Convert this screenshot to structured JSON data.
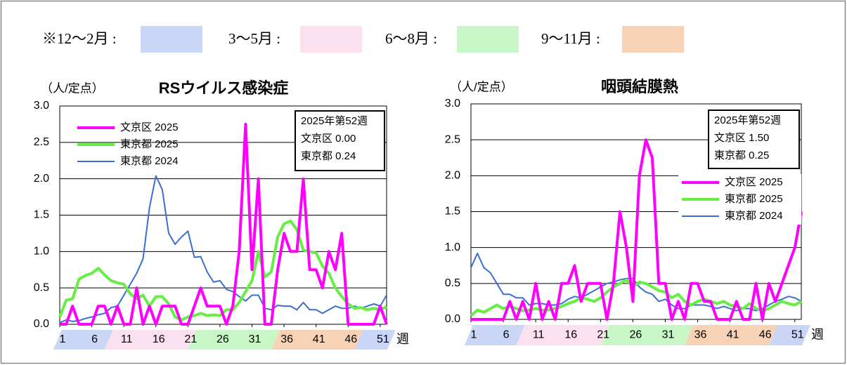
{
  "season_legend": [
    {
      "label": "※12～2月 :",
      "color": "#c9d6f6"
    },
    {
      "label": "3～5月 :",
      "color": "#fbe1ef"
    },
    {
      "label": "6～8月 :",
      "color": "#c9f6c6"
    },
    {
      "label": "9～11月 :",
      "color": "#f8d2b5"
    }
  ],
  "chart_data": [
    {
      "type": "line",
      "title": "RSウイルス感染症",
      "y_label": "（人/定点）",
      "x_label": "週",
      "x": [
        1,
        2,
        3,
        4,
        5,
        6,
        7,
        8,
        9,
        10,
        11,
        12,
        13,
        14,
        15,
        16,
        17,
        18,
        19,
        20,
        21,
        22,
        23,
        24,
        25,
        26,
        27,
        28,
        29,
        30,
        31,
        32,
        33,
        34,
        35,
        36,
        37,
        38,
        39,
        40,
        41,
        42,
        43,
        44,
        45,
        46,
        47,
        48,
        49,
        50,
        51,
        52
      ],
      "xlim": [
        1,
        52
      ],
      "xticks": [
        1,
        6,
        11,
        16,
        21,
        26,
        31,
        36,
        41,
        46,
        51
      ],
      "ylim": [
        0,
        3
      ],
      "yticks": [
        {
          "value": 0,
          "label": "0.0"
        },
        {
          "value": 0.5,
          "label": "0.5"
        },
        {
          "value": 1,
          "label": "1.0"
        },
        {
          "value": 1.5,
          "label": "1.5"
        },
        {
          "value": 2,
          "label": "2.0"
        },
        {
          "value": 2.5,
          "label": "2.5"
        },
        {
          "value": 3,
          "label": "3.0"
        }
      ],
      "grid": true,
      "legend": "upper left",
      "annotation": [
        "2025年第52週",
        "文京区 0.00",
        "東京都 0.24"
      ],
      "series": [
        {
          "name": "文京区 2025",
          "color": "#ff00ff",
          "linewidth": 4,
          "values": [
            0,
            0,
            0.25,
            0,
            0,
            0,
            0.25,
            0.25,
            0,
            0.25,
            0,
            0,
            0.5,
            0,
            0.25,
            0,
            0.25,
            0.25,
            0.25,
            0,
            0,
            0.25,
            0.5,
            0.25,
            0.25,
            0.25,
            0,
            0.25,
            1,
            2.75,
            0.75,
            2,
            0,
            0,
            0.75,
            1.25,
            1,
            1,
            2,
            0.75,
            0.75,
            0.5,
            1,
            0.75,
            1.25,
            0,
            0,
            0,
            0,
            0,
            0.25,
            0
          ]
        },
        {
          "name": "東京都 2025",
          "color": "#66ee44",
          "linewidth": 4,
          "values": [
            0.1,
            0.33,
            0.35,
            0.62,
            0.67,
            0.7,
            0.77,
            0.68,
            0.6,
            0.57,
            0.55,
            0.42,
            0.35,
            0.4,
            0.25,
            0.38,
            0.38,
            0.28,
            0.1,
            0.06,
            0.1,
            0.12,
            0.15,
            0.12,
            0.13,
            0.12,
            0.2,
            0.2,
            0.3,
            0.45,
            0.6,
            1,
            0.65,
            0.72,
            1.2,
            1.38,
            1.42,
            1.3,
            1.02,
            1,
            0.98,
            0.8,
            0.7,
            0.5,
            0.38,
            0.28,
            0.22,
            0.23,
            0.2,
            0.22,
            0.2,
            0.24
          ]
        },
        {
          "name": "東京都 2024",
          "color": "#3a6fd0",
          "linewidth": 2,
          "values": [
            0.02,
            0.06,
            0.04,
            0.05,
            0.08,
            0.1,
            0.13,
            0.15,
            0.23,
            0.25,
            0.4,
            0.55,
            0.7,
            0.9,
            1.6,
            2.04,
            1.85,
            1.25,
            1.1,
            1.2,
            1.28,
            0.92,
            0.93,
            0.72,
            0.58,
            0.6,
            0.48,
            0.45,
            0.38,
            0.32,
            0.4,
            0.4,
            0.22,
            0.2,
            0.26,
            0.25,
            0.25,
            0.2,
            0.3,
            0.2,
            0.2,
            0.15,
            0.2,
            0.25,
            0.22,
            0.22,
            0.25,
            0.22,
            0.25,
            0.28,
            0.25,
            0.4
          ]
        }
      ]
    },
    {
      "type": "line",
      "title": "咽頭結膜熱",
      "y_label": "（人/定点）",
      "x_label": "週",
      "x": [
        1,
        2,
        3,
        4,
        5,
        6,
        7,
        8,
        9,
        10,
        11,
        12,
        13,
        14,
        15,
        16,
        17,
        18,
        19,
        20,
        21,
        22,
        23,
        24,
        25,
        26,
        27,
        28,
        29,
        30,
        31,
        32,
        33,
        34,
        35,
        36,
        37,
        38,
        39,
        40,
        41,
        42,
        43,
        44,
        45,
        46,
        47,
        48,
        49,
        50,
        51,
        52
      ],
      "xlim": [
        1,
        52
      ],
      "xticks": [
        1,
        6,
        11,
        16,
        21,
        26,
        31,
        36,
        41,
        46,
        51
      ],
      "ylim": [
        0,
        3
      ],
      "yticks": [
        {
          "value": 0,
          "label": "0.0"
        },
        {
          "value": 0.5,
          "label": "0.5"
        },
        {
          "value": 1,
          "label": "1.0"
        },
        {
          "value": 1.5,
          "label": "1.5"
        },
        {
          "value": 2,
          "label": "2.0"
        },
        {
          "value": 2.5,
          "label": "2.5"
        },
        {
          "value": 3,
          "label": "3.0"
        }
      ],
      "grid": true,
      "legend": "center right",
      "annotation": [
        "2025年第52週",
        "文京区 1.50",
        "東京都 0.25"
      ],
      "series": [
        {
          "name": "文京区 2025",
          "color": "#ff00ff",
          "linewidth": 4,
          "values": [
            0,
            0,
            0,
            0,
            0,
            0,
            0.25,
            0,
            0.25,
            0,
            0.5,
            0,
            0.25,
            0,
            0.5,
            0.5,
            0.75,
            0.25,
            0.5,
            0.5,
            0.5,
            0,
            0.5,
            1.5,
            1,
            0.25,
            2,
            2.5,
            2.25,
            0.5,
            0.5,
            0,
            0.25,
            0,
            0.5,
            0.5,
            0.25,
            0.25,
            0,
            0,
            0,
            0.25,
            0,
            0,
            0.5,
            0,
            0.5,
            0.25,
            0.5,
            0.75,
            1,
            1.5
          ]
        },
        {
          "name": "東京都 2025",
          "color": "#66ee44",
          "linewidth": 4,
          "values": [
            0.05,
            0.13,
            0.1,
            0.15,
            0.2,
            0.15,
            0.18,
            0.15,
            0.12,
            0.13,
            0.15,
            0.13,
            0.13,
            0.15,
            0.18,
            0.22,
            0.25,
            0.3,
            0.28,
            0.25,
            0.3,
            0.38,
            0.45,
            0.5,
            0.55,
            0.45,
            0.52,
            0.5,
            0.45,
            0.4,
            0.38,
            0.3,
            0.35,
            0.25,
            0.2,
            0.25,
            0.28,
            0.25,
            0.22,
            0.25,
            0.2,
            0.18,
            0.15,
            0.22,
            0.15,
            0.12,
            0.15,
            0.2,
            0.25,
            0.22,
            0.2,
            0.25
          ]
        },
        {
          "name": "東京都 2024",
          "color": "#3a6fd0",
          "linewidth": 2,
          "values": [
            0.72,
            0.92,
            0.72,
            0.65,
            0.5,
            0.35,
            0.35,
            0.3,
            0.3,
            0.2,
            0.22,
            0.22,
            0.2,
            0.2,
            0.22,
            0.28,
            0.32,
            0.3,
            0.35,
            0.4,
            0.45,
            0.5,
            0.52,
            0.55,
            0.57,
            0.57,
            0.45,
            0.38,
            0.35,
            0.25,
            0.28,
            0.2,
            0.15,
            0.15,
            0.2,
            0.2,
            0.2,
            0.18,
            0.15,
            0.18,
            0.15,
            0.12,
            0.15,
            0.15,
            0.12,
            0.15,
            0.2,
            0.25,
            0.28,
            0.32,
            0.3,
            0.25
          ]
        }
      ]
    }
  ]
}
